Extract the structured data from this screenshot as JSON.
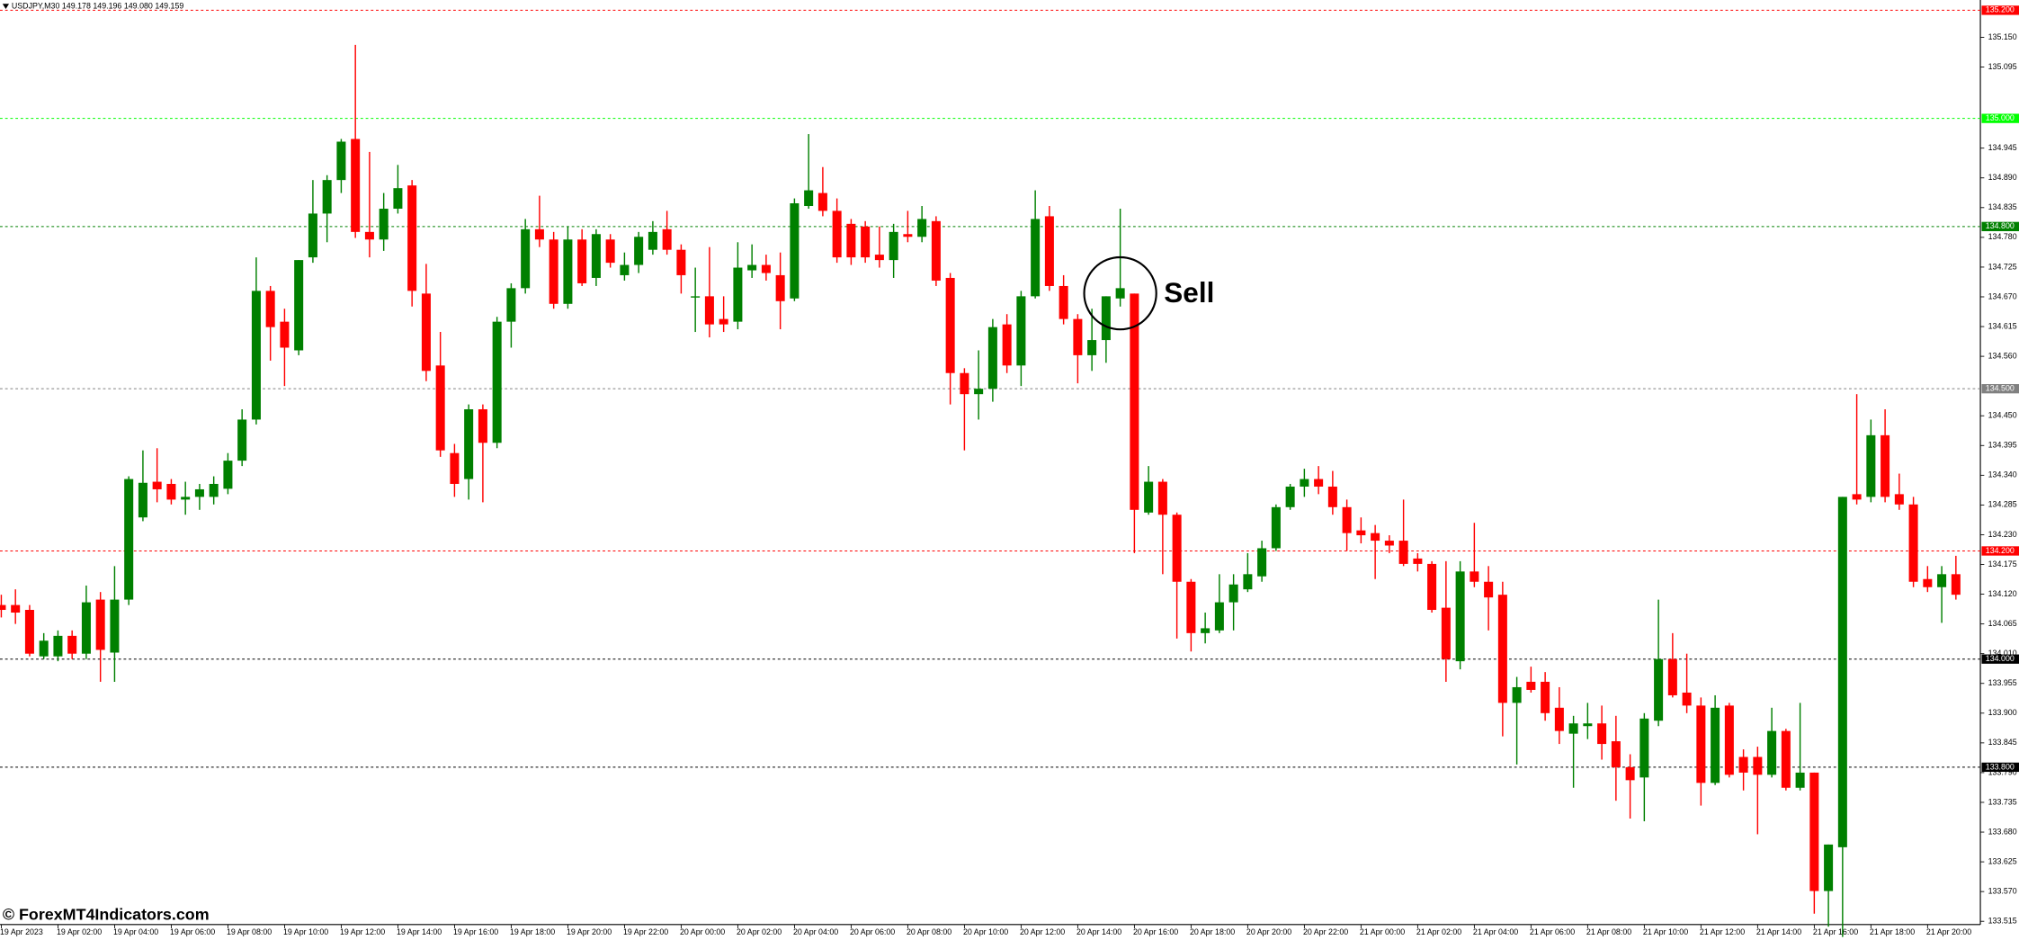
{
  "chart_data": {
    "type": "candlestick",
    "header": "USDJPY,M30  149.178 149.196 149.080 149.159",
    "watermark": "© ForexMT4Indicators.com",
    "annotation": "Sell",
    "up_color": "#008000",
    "down_color": "#ff0000",
    "ylim": [
      133.509,
      135.219
    ],
    "yticks": [
      {
        "value": 133.515,
        "label": "133.515"
      },
      {
        "value": 133.57,
        "label": "133.570"
      },
      {
        "value": 133.625,
        "label": "133.625"
      },
      {
        "value": 133.68,
        "label": "133.680"
      },
      {
        "value": 133.735,
        "label": "133.735"
      },
      {
        "value": 133.79,
        "label": "133.790"
      },
      {
        "value": 133.845,
        "label": "133.845"
      },
      {
        "value": 133.9,
        "label": "133.900"
      },
      {
        "value": 133.955,
        "label": "133.955"
      },
      {
        "value": 134.01,
        "label": "134.010"
      },
      {
        "value": 134.065,
        "label": "134.065"
      },
      {
        "value": 134.12,
        "label": "134.120"
      },
      {
        "value": 134.175,
        "label": "134.175"
      },
      {
        "value": 134.23,
        "label": "134.230"
      },
      {
        "value": 134.285,
        "label": "134.285"
      },
      {
        "value": 134.34,
        "label": "134.340"
      },
      {
        "value": 134.395,
        "label": "134.395"
      },
      {
        "value": 134.45,
        "label": "134.450"
      },
      {
        "value": 134.56,
        "label": "134.560"
      },
      {
        "value": 134.615,
        "label": "134.615"
      },
      {
        "value": 134.67,
        "label": "134.670"
      },
      {
        "value": 134.725,
        "label": "134.725"
      },
      {
        "value": 134.78,
        "label": "134.780"
      },
      {
        "value": 134.835,
        "label": "134.835"
      },
      {
        "value": 134.89,
        "label": "134.890"
      },
      {
        "value": 134.945,
        "label": "134.945"
      },
      {
        "value": 135.095,
        "label": "135.095"
      },
      {
        "value": 135.15,
        "label": "135.150"
      }
    ],
    "levels": [
      {
        "value": 135.2,
        "label": "135.200",
        "color": "#ff0000"
      },
      {
        "value": 135.0,
        "label": "135.000",
        "color": "#00ff00"
      },
      {
        "value": 134.8,
        "label": "134.800",
        "color": "#008000"
      },
      {
        "value": 134.5,
        "label": "134.500",
        "color": "#808080"
      },
      {
        "value": 134.2,
        "label": "134.200",
        "color": "#ff0000"
      },
      {
        "value": 134.0,
        "label": "134.000",
        "color": "#000000"
      },
      {
        "value": 133.8,
        "label": "133.800",
        "color": "#000000"
      }
    ],
    "categories": [
      "19 Apr 2023",
      null,
      null,
      null,
      "19 Apr 02:00",
      null,
      null,
      null,
      "19 Apr 04:00",
      null,
      null,
      null,
      "19 Apr 06:00",
      null,
      null,
      null,
      "19 Apr 08:00",
      null,
      null,
      null,
      "19 Apr 10:00",
      null,
      null,
      null,
      "19 Apr 12:00",
      null,
      null,
      null,
      "19 Apr 14:00",
      null,
      null,
      null,
      "19 Apr 16:00",
      null,
      null,
      null,
      "19 Apr 18:00",
      null,
      null,
      null,
      "19 Apr 20:00",
      null,
      null,
      null,
      "19 Apr 22:00",
      null,
      null,
      null,
      "20 Apr 00:00",
      null,
      null,
      null,
      "20 Apr 02:00",
      null,
      null,
      null,
      "20 Apr 04:00",
      null,
      null,
      null,
      "20 Apr 06:00",
      null,
      null,
      null,
      "20 Apr 08:00",
      null,
      null,
      null,
      "20 Apr 10:00",
      null,
      null,
      null,
      "20 Apr 12:00",
      null,
      null,
      null,
      "20 Apr 14:00",
      null,
      null,
      null,
      "20 Apr 16:00",
      null,
      null,
      null,
      "20 Apr 18:00",
      null,
      null,
      null,
      "20 Apr 20:00",
      null,
      null,
      null,
      "20 Apr 22:00",
      null,
      null,
      null,
      "21 Apr 00:00",
      null,
      null,
      null,
      "21 Apr 02:00",
      null,
      null,
      null,
      "21 Apr 04:00",
      null,
      null,
      null,
      "21 Apr 06:00",
      null,
      null,
      null,
      "21 Apr 08:00",
      null,
      null,
      null,
      "21 Apr 10:00",
      null,
      null,
      null,
      "21 Apr 12:00",
      null,
      null,
      null,
      "21 Apr 14:00",
      null,
      null,
      null,
      "21 Apr 16:00",
      null,
      null,
      null,
      "21 Apr 18:00",
      null,
      null,
      null,
      "21 Apr 20:00",
      null,
      null
    ],
    "open": [
      134.1,
      134.1,
      134.091,
      134.005,
      134.005,
      134.043,
      134.01,
      134.11,
      134.012,
      134.11,
      134.262,
      134.328,
      134.324,
      134.295,
      134.3,
      134.3,
      134.315,
      134.367,
      134.443,
      134.681,
      134.624,
      134.571,
      134.743,
      134.824,
      134.886,
      134.962,
      134.79,
      134.776,
      134.833,
      134.876,
      134.676,
      134.543,
      134.381,
      134.333,
      134.462,
      134.4,
      134.624,
      134.686,
      134.795,
      134.776,
      134.657,
      134.776,
      134.705,
      134.776,
      134.71,
      134.729,
      134.757,
      134.795,
      134.757,
      134.671,
      134.671,
      134.629,
      134.624,
      134.719,
      134.729,
      134.71,
      134.667,
      134.838,
      134.862,
      134.829,
      134.805,
      134.8,
      134.748,
      134.738,
      134.786,
      134.781,
      134.81,
      134.705,
      134.529,
      134.49,
      134.5,
      134.619,
      134.543,
      134.671,
      134.819,
      134.69,
      134.629,
      134.562,
      134.59,
      134.667,
      134.676,
      134.271,
      134.328,
      134.267,
      134.143,
      134.048,
      134.053,
      134.105,
      134.129,
      134.153,
      134.205,
      134.281,
      134.319,
      134.333,
      134.319,
      134.281,
      134.238,
      134.233,
      134.219,
      134.219,
      134.186,
      134.176,
      134.095,
      133.996,
      134.162,
      134.143,
      134.119,
      133.919,
      133.958,
      133.958,
      133.91,
      133.862,
      133.876,
      133.881,
      133.848,
      133.8,
      133.781,
      133.886,
      134.0,
      133.938,
      133.914,
      133.771,
      133.914,
      133.819,
      133.819,
      133.786,
      133.867,
      133.762,
      133.79,
      133.571,
      133.652,
      134.305,
      134.3,
      134.414,
      134.305,
      134.286,
      134.148,
      134.133,
      134.157
    ],
    "high": [
      134.119,
      134.129,
      134.1,
      134.048,
      134.053,
      134.053,
      134.136,
      134.124,
      134.172,
      134.338,
      134.386,
      134.39,
      134.333,
      134.328,
      134.324,
      134.338,
      134.381,
      134.462,
      134.743,
      134.69,
      134.648,
      134.738,
      134.886,
      134.895,
      134.962,
      135.136,
      134.938,
      134.862,
      134.914,
      134.886,
      134.731,
      134.605,
      134.398,
      134.471,
      134.471,
      134.633,
      134.695,
      134.814,
      134.857,
      134.79,
      134.8,
      134.795,
      134.795,
      134.786,
      134.752,
      134.79,
      134.81,
      134.829,
      134.767,
      134.724,
      134.762,
      134.671,
      134.771,
      134.767,
      134.748,
      134.752,
      134.852,
      134.971,
      134.91,
      134.852,
      134.814,
      134.81,
      134.8,
      134.805,
      134.829,
      134.838,
      134.819,
      134.714,
      134.538,
      134.571,
      134.629,
      134.638,
      134.681,
      134.867,
      134.838,
      134.71,
      134.638,
      134.648,
      134.671,
      134.833,
      134.676,
      134.357,
      134.333,
      134.271,
      134.148,
      134.086,
      134.157,
      134.157,
      134.196,
      134.219,
      134.286,
      134.324,
      134.352,
      134.357,
      134.348,
      134.295,
      134.262,
      134.248,
      134.229,
      134.295,
      134.196,
      134.181,
      134.181,
      134.181,
      134.252,
      134.172,
      134.143,
      133.967,
      133.986,
      133.976,
      133.948,
      133.895,
      133.919,
      133.914,
      133.895,
      133.824,
      133.9,
      134.11,
      134.048,
      134.01,
      133.929,
      133.933,
      133.919,
      133.833,
      133.838,
      133.91,
      133.871,
      133.919,
      133.79,
      133.657,
      134.3,
      134.49,
      134.443,
      134.462,
      134.343,
      134.3,
      134.172,
      134.172,
      134.191
    ],
    "low": [
      134.077,
      134.065,
      134.005,
      134.0,
      133.996,
      134.0,
      134.0,
      133.958,
      133.958,
      134.1,
      134.255,
      134.29,
      134.286,
      134.267,
      134.276,
      134.286,
      134.305,
      134.357,
      134.434,
      134.552,
      134.505,
      134.562,
      134.733,
      134.771,
      134.862,
      134.779,
      134.743,
      134.755,
      134.824,
      134.652,
      134.514,
      134.374,
      134.3,
      134.295,
      134.29,
      134.39,
      134.576,
      134.676,
      134.762,
      134.648,
      134.648,
      134.69,
      134.69,
      134.724,
      134.7,
      134.714,
      134.748,
      134.748,
      134.676,
      134.605,
      134.595,
      134.605,
      134.61,
      134.705,
      134.7,
      134.61,
      134.662,
      134.833,
      134.819,
      134.733,
      134.729,
      134.733,
      134.724,
      134.705,
      134.771,
      134.771,
      134.69,
      134.471,
      134.386,
      134.443,
      134.476,
      134.529,
      134.505,
      134.667,
      134.681,
      134.619,
      134.51,
      134.533,
      134.548,
      134.652,
      134.196,
      134.267,
      134.157,
      134.038,
      134.014,
      134.029,
      134.048,
      134.053,
      134.124,
      134.143,
      134.2,
      134.276,
      134.3,
      134.305,
      134.267,
      134.2,
      134.214,
      134.148,
      134.196,
      134.172,
      134.162,
      134.086,
      133.958,
      133.981,
      134.133,
      134.053,
      133.857,
      133.805,
      133.938,
      133.886,
      133.843,
      133.762,
      133.852,
      133.814,
      133.738,
      133.705,
      133.7,
      133.876,
      133.929,
      133.9,
      133.729,
      133.767,
      133.781,
      133.757,
      133.676,
      133.781,
      133.757,
      133.757,
      133.529,
      133.505,
      133.486,
      134.286,
      134.29,
      134.29,
      134.276,
      134.133,
      134.124,
      134.067,
      134.11
    ],
    "close": [
      134.091,
      134.086,
      134.01,
      134.034,
      134.043,
      134.01,
      134.105,
      134.017,
      134.11,
      134.333,
      134.326,
      134.314,
      134.295,
      134.3,
      134.314,
      134.324,
      134.367,
      134.443,
      134.681,
      134.614,
      134.576,
      134.738,
      134.824,
      134.886,
      134.957,
      134.79,
      134.776,
      134.833,
      134.871,
      134.681,
      134.533,
      134.386,
      134.324,
      134.462,
      134.4,
      134.624,
      134.686,
      134.795,
      134.776,
      134.657,
      134.776,
      134.695,
      134.786,
      134.733,
      134.729,
      134.781,
      134.79,
      134.757,
      134.71,
      134.671,
      134.619,
      134.619,
      134.724,
      134.729,
      134.714,
      134.662,
      134.843,
      134.867,
      134.829,
      134.743,
      134.743,
      134.743,
      134.738,
      134.79,
      134.781,
      134.814,
      134.7,
      134.529,
      134.49,
      134.5,
      134.614,
      134.543,
      134.671,
      134.814,
      134.69,
      134.629,
      134.562,
      134.59,
      134.671,
      134.686,
      134.276,
      134.328,
      134.267,
      134.143,
      134.048,
      134.057,
      134.105,
      134.138,
      134.157,
      134.205,
      134.281,
      134.319,
      134.333,
      134.319,
      134.281,
      134.233,
      134.229,
      134.219,
      134.21,
      134.176,
      134.176,
      134.091,
      134.0,
      134.162,
      134.143,
      134.114,
      133.919,
      133.948,
      133.943,
      133.9,
      133.867,
      133.881,
      133.881,
      133.843,
      133.8,
      133.776,
      133.89,
      134.0,
      133.933,
      133.914,
      133.771,
      133.91,
      133.786,
      133.79,
      133.786,
      133.867,
      133.762,
      133.79,
      133.571,
      133.657,
      134.3,
      134.295,
      134.414,
      134.3,
      134.286,
      134.143,
      134.133,
      134.157,
      134.119
    ]
  }
}
